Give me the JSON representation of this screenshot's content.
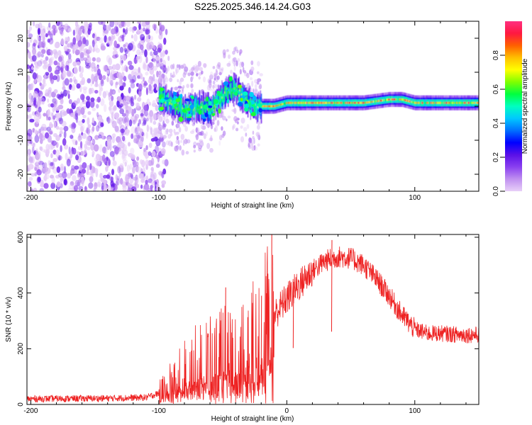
{
  "figure": {
    "title": "S225.2025.346.14.24.G03"
  },
  "chart_data": [
    {
      "type": "heatmap",
      "name": "spectrogram",
      "xlabel": "Height of straight line (km)",
      "ylabel": "Frequency (Hz)",
      "xlim": [
        -203,
        150
      ],
      "ylim": [
        -25,
        25
      ],
      "xticks": [
        -200,
        -100,
        0,
        100
      ],
      "yticks": [
        -20,
        -10,
        0,
        10,
        20
      ],
      "colorbar": {
        "label": "Normalized spectral amplitude",
        "range": [
          0,
          1
        ],
        "ticks": [
          0.0,
          0.2,
          0.4,
          0.6,
          0.8
        ],
        "stops": [
          "#e8d0f8",
          "#c090f0",
          "#8a40f0",
          "#5a10e8",
          "#0000ff",
          "#0070ff",
          "#00c8ff",
          "#00ffc0",
          "#00ff40",
          "#80ff00",
          "#ffff00",
          "#ffc000",
          "#ff6000",
          "#ff1840",
          "#ff3080"
        ]
      },
      "regions": [
        {
          "desc": "noise",
          "x_from": -203,
          "x_to": -100
        },
        {
          "desc": "signal",
          "x_from": -100,
          "x_to": 150
        }
      ],
      "ridge": [
        [
          -100,
          3
        ],
        [
          -90,
          1
        ],
        [
          -80,
          -1
        ],
        [
          -70,
          0
        ],
        [
          -60,
          -1
        ],
        [
          -50,
          3
        ],
        [
          -45,
          5
        ],
        [
          -40,
          5
        ],
        [
          -35,
          3
        ],
        [
          -30,
          1
        ],
        [
          -25,
          0
        ],
        [
          -20,
          0
        ],
        [
          -10,
          0
        ],
        [
          0,
          1
        ],
        [
          10,
          1
        ],
        [
          20,
          1
        ],
        [
          40,
          1
        ],
        [
          60,
          1
        ],
        [
          80,
          2
        ],
        [
          90,
          2
        ],
        [
          100,
          1
        ],
        [
          110,
          1
        ],
        [
          120,
          1
        ],
        [
          130,
          1
        ],
        [
          150,
          1
        ]
      ]
    },
    {
      "type": "line",
      "name": "snr",
      "xlabel": "Height of straight line (km)",
      "ylabel": "SNR (10 * v/v)",
      "xlim": [
        -203,
        150
      ],
      "ylim": [
        0,
        610
      ],
      "xticks": [
        -200,
        -100,
        0,
        100
      ],
      "yticks": [
        0,
        200,
        400,
        600
      ],
      "color": "#ee2222",
      "envelope": [
        [
          -203,
          20
        ],
        [
          -140,
          22
        ],
        [
          -110,
          25
        ],
        [
          -100,
          40
        ],
        [
          -90,
          80
        ],
        [
          -80,
          110
        ],
        [
          -70,
          140
        ],
        [
          -60,
          150
        ],
        [
          -50,
          170
        ],
        [
          -40,
          190
        ],
        [
          -30,
          200
        ],
        [
          -20,
          240
        ],
        [
          -15,
          280
        ],
        [
          -10,
          320
        ],
        [
          0,
          380
        ],
        [
          10,
          430
        ],
        [
          20,
          480
        ],
        [
          30,
          515
        ],
        [
          40,
          530
        ],
        [
          50,
          525
        ],
        [
          60,
          500
        ],
        [
          70,
          450
        ],
        [
          80,
          390
        ],
        [
          90,
          320
        ],
        [
          100,
          270
        ],
        [
          110,
          255
        ],
        [
          120,
          255
        ],
        [
          135,
          250
        ],
        [
          150,
          250
        ]
      ],
      "spikes": [
        [
          -48,
          420
        ],
        [
          -12,
          610
        ],
        [
          -20,
          390
        ],
        [
          5,
          440
        ],
        [
          35,
          590
        ]
      ]
    }
  ]
}
